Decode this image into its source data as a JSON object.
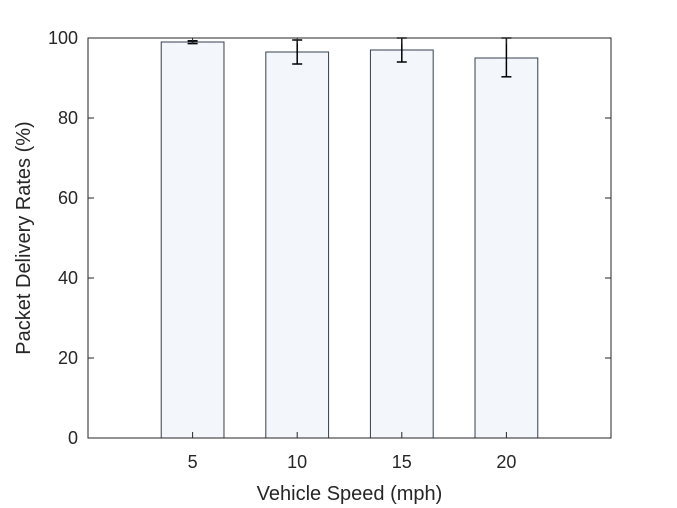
{
  "chart_data": {
    "type": "bar",
    "title": "",
    "xlabel": "Vehicle Speed (mph)",
    "ylabel": "Packet Delivery Rates (%)",
    "categories": [
      "5",
      "10",
      "15",
      "20"
    ],
    "values": [
      99.0,
      96.5,
      97.0,
      95.0
    ],
    "error_low": [
      98.6,
      93.5,
      94.0,
      90.3
    ],
    "error_high": [
      99.3,
      99.5,
      100.0,
      100.0
    ],
    "ylim": [
      0,
      100
    ],
    "yticks": [
      0,
      20,
      40,
      60,
      80,
      100
    ],
    "ytick_labels": [
      "0",
      "20",
      "40",
      "60",
      "80",
      "100"
    ],
    "xlim": [
      0,
      5
    ],
    "grid": false,
    "legend": false,
    "colors": {
      "bar_fill": "#f3f7fc",
      "bar_edge": "#33404d",
      "axis": "#262626",
      "error_bar": "#000000"
    }
  }
}
